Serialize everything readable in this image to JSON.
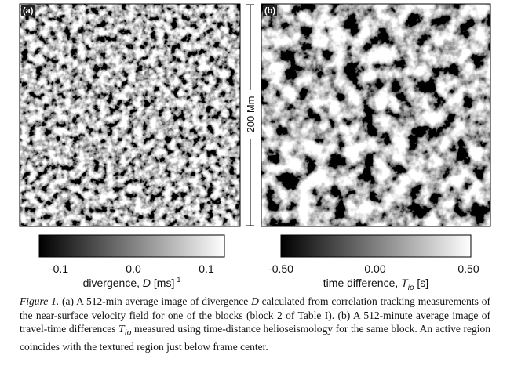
{
  "panels": [
    {
      "label": "(a)",
      "colorbar": {
        "ticks": [
          "-0.1",
          "0.0",
          "0.1"
        ],
        "label": {
          "text": "divergence, ",
          "symbol": "D",
          "unit": " [ms]",
          "superscript": "-1"
        }
      }
    },
    {
      "label": "(b)",
      "colorbar": {
        "ticks": [
          "-0.50",
          "0.00",
          "0.50"
        ],
        "label": {
          "text": "time difference, ",
          "symbol": "T",
          "subscript": "io",
          "unit": " [s]"
        }
      }
    }
  ],
  "scale_bar": "200 Mm",
  "caption": {
    "figure_label": "Figure 1.",
    "part_1": " (a) A 512-min average image of divergence ",
    "symbol_d": "D",
    "part_2": " calculated from correlation tracking measurements of the near-surface velocity field for one of the blocks (block 2 of Table I). (b) A 512-minute average image of travel-time differences ",
    "symbol_t": "T",
    "subscript_t": "io",
    "part_3": " measured using time-distance helioseismology for the same block. An active region coincides with the textured region just below frame center."
  }
}
